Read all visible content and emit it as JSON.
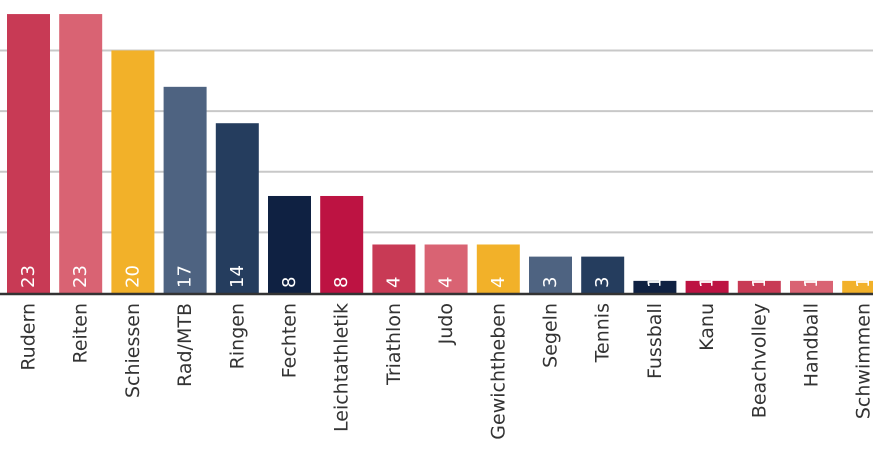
{
  "chart_data": {
    "type": "bar",
    "categories": [
      "Rudern",
      "Reiten",
      "Schiessen",
      "Rad/MTB",
      "Ringen",
      "Fechten",
      "Leichtathletik",
      "Triathlon",
      "Judo",
      "Gewichtheben",
      "Segeln",
      "Tennis",
      "Fussball",
      "Kanu",
      "Beachvolley",
      "Handball",
      "Schwimmen"
    ],
    "values": [
      23,
      23,
      20,
      17,
      14,
      8,
      8,
      4,
      4,
      4,
      3,
      3,
      1,
      1,
      1,
      1,
      1
    ],
    "data_labels": [
      "23",
      "23",
      "20",
      "17",
      "14",
      "8",
      "8",
      "4",
      "4",
      "4",
      "3",
      "3",
      "1",
      "1",
      "1",
      "1",
      "1"
    ],
    "bar_colors": [
      "#C83A55",
      "#D96373",
      "#F2B129",
      "#4E6381",
      "#253D5E",
      "#0F2142",
      "#BD1342",
      "#C83A55",
      "#D96373",
      "#F2B129",
      "#4E6381",
      "#253D5E",
      "#0F2142",
      "#BD1342",
      "#C83A55",
      "#D96373",
      "#F2B129"
    ],
    "ylim": [
      0,
      23.5
    ],
    "yticks": [
      5,
      10,
      15,
      20
    ],
    "grid": true,
    "gridline_color": "#c8c8c8",
    "axis_color": "#333333"
  }
}
